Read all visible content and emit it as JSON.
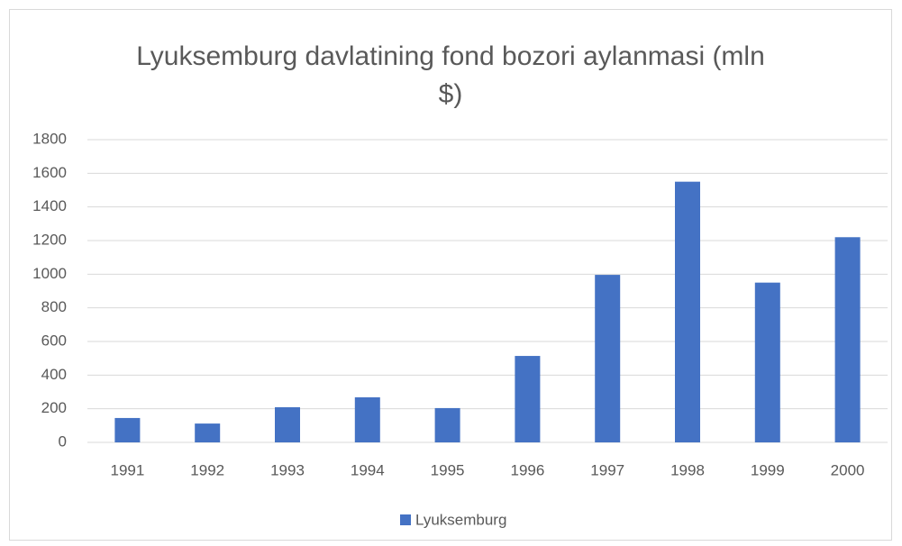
{
  "chart_data": {
    "type": "bar",
    "title": "Lyuksemburg davlatining fond bozori aylanmasi (mln $)",
    "categories": [
      "1991",
      "1992",
      "1993",
      "1994",
      "1995",
      "1996",
      "1997",
      "1998",
      "1999",
      "2000"
    ],
    "series": [
      {
        "name": "Lyuksemburg",
        "color": "#4472c4",
        "values": [
          145,
          112,
          209,
          268,
          204,
          514,
          996,
          1550,
          950,
          1220
        ]
      }
    ],
    "ylim": [
      0,
      1800
    ],
    "yticks": [
      0,
      200,
      400,
      600,
      800,
      1000,
      1200,
      1400,
      1600,
      1800
    ],
    "grid": true,
    "legend": "bottom"
  }
}
